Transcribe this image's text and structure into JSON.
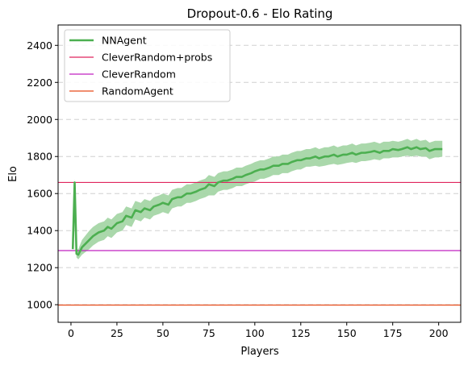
{
  "chart_data": {
    "type": "line",
    "title": "Dropout-0.6 - Elo Rating",
    "xlabel": "Players",
    "ylabel": "Elo",
    "xlim": [
      -7,
      212
    ],
    "ylim": [
      905,
      2510
    ],
    "xticks": [
      0,
      25,
      50,
      75,
      100,
      125,
      150,
      175,
      200
    ],
    "yticks": [
      1000,
      1200,
      1400,
      1600,
      1800,
      2000,
      2200,
      2400
    ],
    "grid": "y-dashed",
    "legend_position": "top-left",
    "series": [
      {
        "name": "NNAgent",
        "kind": "line-with-band",
        "color": "#4caf50",
        "band_color": "#a5d6a7",
        "x": [
          1,
          2,
          3,
          4,
          6,
          8,
          10,
          12,
          15,
          18,
          20,
          22,
          25,
          28,
          30,
          33,
          35,
          38,
          40,
          43,
          45,
          48,
          50,
          53,
          55,
          58,
          60,
          63,
          65,
          68,
          70,
          73,
          75,
          78,
          80,
          83,
          85,
          88,
          90,
          93,
          95,
          98,
          100,
          103,
          105,
          108,
          110,
          113,
          115,
          118,
          120,
          123,
          125,
          128,
          130,
          133,
          135,
          138,
          140,
          143,
          145,
          148,
          150,
          153,
          155,
          158,
          160,
          163,
          165,
          168,
          170,
          173,
          175,
          178,
          180,
          183,
          185,
          188,
          190,
          193,
          195,
          198,
          200,
          202
        ],
        "values": [
          1300,
          1660,
          1275,
          1270,
          1310,
          1330,
          1350,
          1370,
          1390,
          1400,
          1420,
          1410,
          1440,
          1450,
          1480,
          1470,
          1510,
          1500,
          1520,
          1510,
          1530,
          1540,
          1550,
          1540,
          1570,
          1580,
          1580,
          1600,
          1600,
          1610,
          1620,
          1630,
          1650,
          1640,
          1660,
          1670,
          1670,
          1680,
          1690,
          1690,
          1700,
          1710,
          1720,
          1730,
          1730,
          1740,
          1750,
          1750,
          1760,
          1760,
          1770,
          1780,
          1780,
          1790,
          1790,
          1800,
          1790,
          1800,
          1800,
          1810,
          1800,
          1810,
          1810,
          1820,
          1810,
          1820,
          1820,
          1825,
          1830,
          1820,
          1830,
          1830,
          1840,
          1835,
          1840,
          1850,
          1840,
          1850,
          1840,
          1845,
          1830,
          1840,
          1840,
          1840
        ],
        "lower": [
          1280,
          1640,
          1255,
          1245,
          1270,
          1285,
          1300,
          1320,
          1340,
          1350,
          1370,
          1360,
          1390,
          1400,
          1430,
          1420,
          1460,
          1450,
          1470,
          1460,
          1480,
          1490,
          1500,
          1490,
          1520,
          1530,
          1530,
          1550,
          1550,
          1560,
          1570,
          1580,
          1590,
          1590,
          1610,
          1620,
          1620,
          1630,
          1640,
          1640,
          1650,
          1660,
          1665,
          1680,
          1680,
          1690,
          1700,
          1700,
          1710,
          1710,
          1720,
          1730,
          1730,
          1745,
          1745,
          1750,
          1745,
          1750,
          1755,
          1760,
          1755,
          1760,
          1765,
          1770,
          1765,
          1775,
          1775,
          1780,
          1785,
          1780,
          1790,
          1790,
          1795,
          1795,
          1800,
          1805,
          1800,
          1805,
          1800,
          1800,
          1785,
          1795,
          1795,
          1800
        ],
        "upper": [
          1320,
          1680,
          1295,
          1300,
          1350,
          1375,
          1400,
          1420,
          1440,
          1450,
          1470,
          1460,
          1490,
          1500,
          1530,
          1520,
          1560,
          1550,
          1570,
          1560,
          1580,
          1590,
          1600,
          1590,
          1620,
          1630,
          1630,
          1650,
          1650,
          1660,
          1670,
          1680,
          1700,
          1690,
          1710,
          1720,
          1720,
          1730,
          1740,
          1740,
          1750,
          1760,
          1770,
          1780,
          1780,
          1790,
          1800,
          1800,
          1810,
          1810,
          1820,
          1830,
          1830,
          1840,
          1840,
          1850,
          1840,
          1850,
          1850,
          1860,
          1850,
          1860,
          1860,
          1870,
          1860,
          1870,
          1870,
          1875,
          1880,
          1870,
          1880,
          1880,
          1885,
          1880,
          1885,
          1895,
          1885,
          1895,
          1885,
          1890,
          1875,
          1885,
          1885,
          1885
        ]
      },
      {
        "name": "CleverRandom+probs",
        "kind": "hline",
        "y": 1660,
        "color": "#e0245e"
      },
      {
        "name": "CleverRandom",
        "kind": "hline",
        "y": 1292,
        "color": "#c020c0"
      },
      {
        "name": "RandomAgent",
        "kind": "hline",
        "y": 998,
        "color": "#e64a19"
      }
    ]
  }
}
